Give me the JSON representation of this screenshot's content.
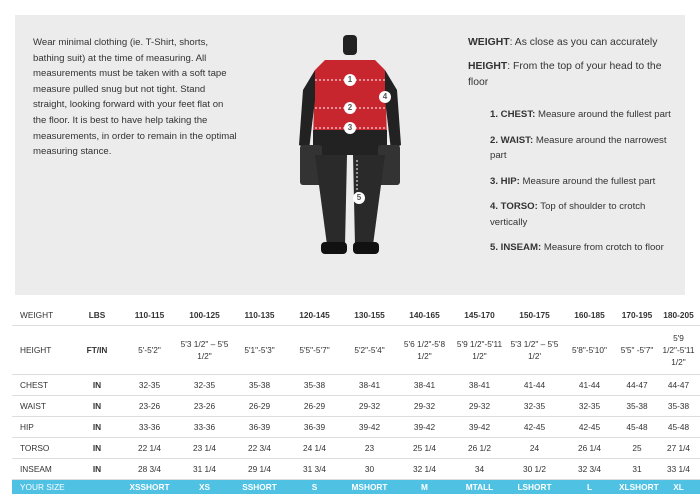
{
  "intro": "Wear minimal clothing (ie. T-Shirt, shorts, bathing suit) at the time of measuring. All measurements must be taken with a soft tape measure pulled snug but not tight. Stand straight, looking forward with your feet flat on the floor. It is best to have help taking the measurements, in order to remain in the optimal measuring stance.",
  "definitions": [
    {
      "term": "WEIGHT",
      "text": ": As close as you can accurately"
    },
    {
      "term": "HEIGHT",
      "text": ": From the top of your head to the floor"
    }
  ],
  "measurements": [
    {
      "label": "1. CHEST:",
      "text": " Measure around the fullest part"
    },
    {
      "label": "2. WAIST:",
      "text": "  Measure around the narrowest part"
    },
    {
      "label": "3. HIP:",
      "text": " Measure around the fullest part"
    },
    {
      "label": "4. TORSO:",
      "text": " Top of shoulder to crotch vertically"
    },
    {
      "label": "5. INSEAM:",
      "text": " Measure from crotch to floor"
    }
  ],
  "diagram_markers": [
    1,
    2,
    3,
    4,
    5
  ],
  "table": {
    "header": [
      "WEIGHT",
      "LBS",
      "110-115",
      "100-125",
      "110-135",
      "120-145",
      "130-155",
      "140-165",
      "145-170",
      "150-175",
      "160-185",
      "170-195",
      "180-205"
    ],
    "rows": [
      [
        "HEIGHT",
        "FT/IN",
        "5'-5'2\"",
        "5'3 1/2\" – 5'5 1/2\"",
        "5'1\"-5'3\"",
        "5'5\"-5'7\"",
        "5'2\"-5'4\"",
        "5'6 1/2\"-5'8 1/2\"",
        "5'9 1/2\"-5'11 1/2\"",
        "5'3 1/2\" – 5'5 1/2'",
        "5'8\"-5'10\"",
        "5'5\" -5'7\"",
        "5'9 1/2\"-5'11 1/2\""
      ],
      [
        "CHEST",
        "IN",
        "32-35",
        "32-35",
        "35-38",
        "35-38",
        "38-41",
        "38-41",
        "38-41",
        "41-44",
        "41-44",
        "44-47",
        "44-47"
      ],
      [
        "WAIST",
        "IN",
        "23-26",
        "23-26",
        "26-29",
        "26-29",
        "29-32",
        "29-32",
        "29-32",
        "32-35",
        "32-35",
        "35-38",
        "35-38"
      ],
      [
        "HIP",
        "IN",
        "33-36",
        "33-36",
        "36-39",
        "36-39",
        "39-42",
        "39-42",
        "39-42",
        "42-45",
        "42-45",
        "45-48",
        "45-48"
      ],
      [
        "TORSO",
        "IN",
        "22 1/4",
        "23 1/4",
        "22 3/4",
        "24 1/4",
        "23",
        "25 1/4",
        "26 1/2",
        "24",
        "26 1/4",
        "25",
        "27 1/4"
      ],
      [
        "INSEAM",
        "IN",
        "28 3/4",
        "31 1/4",
        "29 1/4",
        "31 3/4",
        "30",
        "32 1/4",
        "34",
        "30 1/2",
        "32 3/4",
        "31",
        "33 1/4"
      ],
      [
        "YOUR SIZE",
        null,
        "XSSHORT",
        "XS",
        "SSHORT",
        "S",
        "MSHORT",
        "M",
        "MTALL",
        "LSHORT",
        "L",
        "XLSHORT",
        "XL"
      ]
    ]
  }
}
